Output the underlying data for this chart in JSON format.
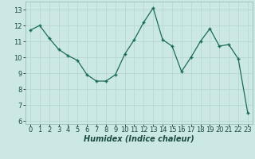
{
  "x": [
    0,
    1,
    2,
    3,
    4,
    5,
    6,
    7,
    8,
    9,
    10,
    11,
    12,
    13,
    14,
    15,
    16,
    17,
    18,
    19,
    20,
    21,
    22,
    23
  ],
  "y": [
    11.7,
    12.0,
    11.2,
    10.5,
    10.1,
    9.8,
    8.9,
    8.5,
    8.5,
    8.9,
    10.2,
    11.1,
    12.2,
    13.1,
    11.1,
    10.7,
    9.1,
    10.0,
    11.0,
    11.8,
    10.7,
    10.8,
    9.9,
    6.5
  ],
  "xlabel": "Humidex (Indice chaleur)",
  "xlim": [
    -0.5,
    23.5
  ],
  "ylim": [
    5.8,
    13.5
  ],
  "yticks": [
    6,
    7,
    8,
    9,
    10,
    11,
    12,
    13
  ],
  "xticks": [
    0,
    1,
    2,
    3,
    4,
    5,
    6,
    7,
    8,
    9,
    10,
    11,
    12,
    13,
    14,
    15,
    16,
    17,
    18,
    19,
    20,
    21,
    22,
    23
  ],
  "line_color": "#1a6b5a",
  "marker_color": "#1a6b5a",
  "bg_color": "#cce8e4",
  "grid_color": "#b8d8d4",
  "label_fontsize": 7,
  "tick_fontsize": 6
}
